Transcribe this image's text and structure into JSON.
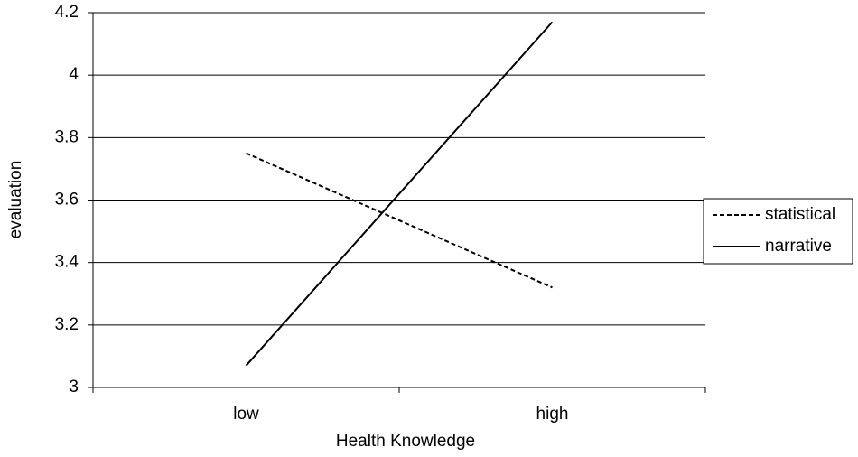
{
  "chart_data": {
    "type": "line",
    "x_label": "Health Knowledge",
    "y_label": "evaluation",
    "categories": [
      "low",
      "high"
    ],
    "series": [
      {
        "name": "statistical",
        "color": "#000000",
        "linestyle": "dashed",
        "values": [
          3.75,
          3.32
        ]
      },
      {
        "name": "narrative",
        "color": "#000000",
        "linestyle": "solid",
        "values": [
          3.07,
          4.17
        ]
      }
    ],
    "ylim": [
      3,
      4.2
    ],
    "yticks": [
      3,
      {
        "value": 3.2,
        "label": "3.2"
      },
      {
        "value": 3.4,
        "label": "3.4"
      },
      {
        "value": 3.6,
        "label": "3.6"
      },
      {
        "value": 3.8,
        "label": "3.8"
      },
      4,
      {
        "value": 4.2,
        "label": "4.2"
      }
    ],
    "grid": true,
    "legend": "right"
  }
}
